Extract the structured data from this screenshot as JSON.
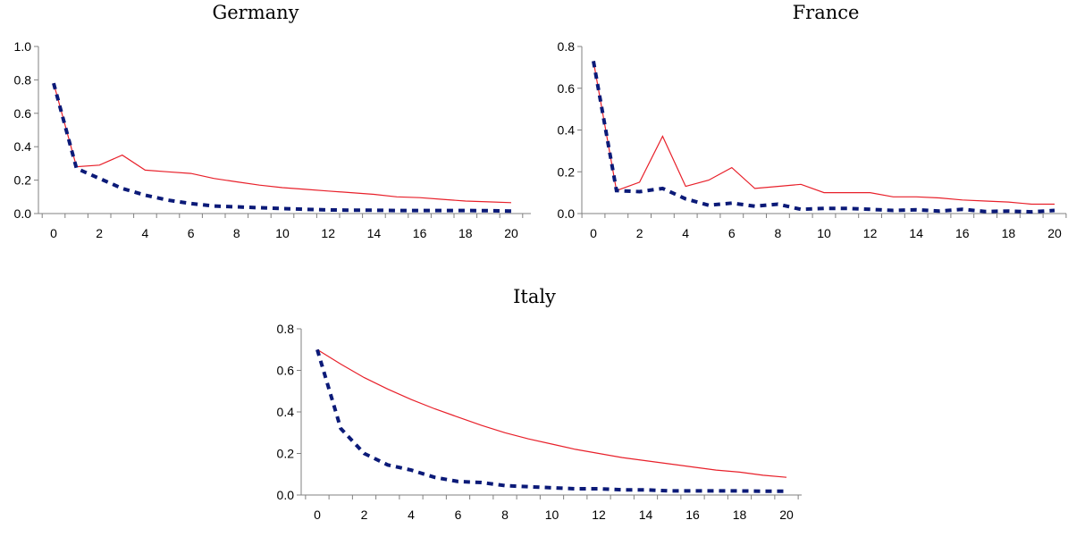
{
  "chart_data": [
    {
      "type": "line",
      "title": "Germany",
      "x": [
        0,
        1,
        2,
        3,
        4,
        5,
        6,
        7,
        8,
        9,
        10,
        11,
        12,
        13,
        14,
        15,
        16,
        17,
        18,
        19,
        20
      ],
      "xticks": [
        0,
        2,
        4,
        6,
        8,
        10,
        12,
        14,
        16,
        18,
        20
      ],
      "ylim": [
        0,
        1.0
      ],
      "yticks": [
        "0.0",
        "0.2",
        "0.4",
        "0.6",
        "0.8",
        "1.0"
      ],
      "grid": false,
      "series": [
        {
          "style": "solid",
          "color": "#e8202a",
          "values": [
            0.78,
            0.28,
            0.29,
            0.35,
            0.26,
            0.25,
            0.24,
            0.21,
            0.19,
            0.17,
            0.155,
            0.145,
            0.135,
            0.125,
            0.115,
            0.1,
            0.095,
            0.085,
            0.075,
            0.07,
            0.065
          ]
        },
        {
          "style": "dashed",
          "color": "#0b1a78",
          "values": [
            0.78,
            0.27,
            0.21,
            0.15,
            0.11,
            0.08,
            0.06,
            0.045,
            0.04,
            0.035,
            0.03,
            0.025,
            0.022,
            0.02,
            0.02,
            0.018,
            0.018,
            0.018,
            0.018,
            0.017,
            0.015
          ]
        }
      ]
    },
    {
      "type": "line",
      "title": "France",
      "x": [
        0,
        1,
        2,
        3,
        4,
        5,
        6,
        7,
        8,
        9,
        10,
        11,
        12,
        13,
        14,
        15,
        16,
        17,
        18,
        19,
        20
      ],
      "xticks": [
        0,
        2,
        4,
        6,
        8,
        10,
        12,
        14,
        16,
        18,
        20
      ],
      "ylim": [
        0,
        0.8
      ],
      "yticks": [
        "0.0",
        "0.2",
        "0.4",
        "0.6",
        "0.8"
      ],
      "grid": false,
      "series": [
        {
          "style": "solid",
          "color": "#e8202a",
          "values": [
            0.73,
            0.11,
            0.15,
            0.37,
            0.13,
            0.16,
            0.22,
            0.12,
            0.13,
            0.14,
            0.1,
            0.1,
            0.1,
            0.08,
            0.08,
            0.075,
            0.065,
            0.06,
            0.055,
            0.045,
            0.045
          ]
        },
        {
          "style": "dashed",
          "color": "#0b1a78",
          "values": [
            0.73,
            0.11,
            0.105,
            0.12,
            0.07,
            0.04,
            0.05,
            0.035,
            0.045,
            0.02,
            0.025,
            0.025,
            0.02,
            0.015,
            0.018,
            0.012,
            0.02,
            0.01,
            0.012,
            0.008,
            0.015
          ]
        }
      ]
    },
    {
      "type": "line",
      "title": "Italy",
      "x": [
        0,
        1,
        2,
        3,
        4,
        5,
        6,
        7,
        8,
        9,
        10,
        11,
        12,
        13,
        14,
        15,
        16,
        17,
        18,
        19,
        20
      ],
      "xticks": [
        0,
        2,
        4,
        6,
        8,
        10,
        12,
        14,
        16,
        18,
        20
      ],
      "ylim": [
        0,
        0.8
      ],
      "yticks": [
        "0.0",
        "0.2",
        "0.4",
        "0.6",
        "0.8"
      ],
      "grid": false,
      "series": [
        {
          "style": "solid",
          "color": "#e8202a",
          "values": [
            0.7,
            0.63,
            0.565,
            0.51,
            0.46,
            0.415,
            0.375,
            0.335,
            0.3,
            0.27,
            0.245,
            0.22,
            0.2,
            0.18,
            0.165,
            0.15,
            0.135,
            0.12,
            0.11,
            0.095,
            0.085
          ]
        },
        {
          "style": "dashed",
          "color": "#0b1a78",
          "values": [
            0.7,
            0.32,
            0.2,
            0.145,
            0.12,
            0.085,
            0.065,
            0.06,
            0.045,
            0.04,
            0.035,
            0.03,
            0.03,
            0.025,
            0.025,
            0.02,
            0.02,
            0.02,
            0.02,
            0.018,
            0.018
          ]
        }
      ]
    }
  ]
}
